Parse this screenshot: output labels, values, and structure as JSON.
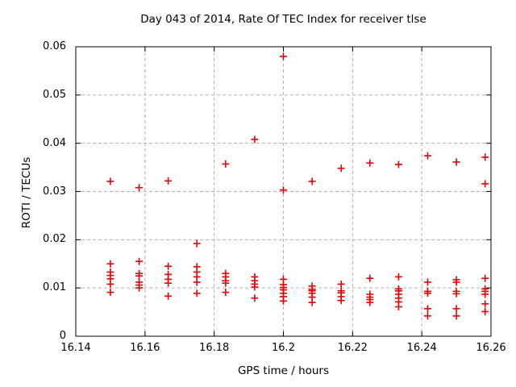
{
  "chart_data": {
    "type": "scatter",
    "title": "Day 043 of 2014, Rate Of TEC Index for receiver tlse",
    "xlabel": "GPS time / hours",
    "ylabel": "ROTI / TECUs",
    "xlim": [
      16.14,
      16.26
    ],
    "ylim": [
      0,
      0.06
    ],
    "xtick_labels": [
      "16.14",
      "16.16",
      "16.18",
      "16.2",
      "16.22",
      "16.24",
      "16.26"
    ],
    "xticks": [
      16.14,
      16.16,
      16.18,
      16.2,
      16.22,
      16.24,
      16.26
    ],
    "ytick_labels": [
      "0",
      "0.01",
      "0.02",
      "0.03",
      "0.04",
      "0.05",
      "0.06"
    ],
    "yticks": [
      0,
      0.01,
      0.02,
      0.03,
      0.04,
      0.05,
      0.06
    ],
    "grid": true,
    "legend": "none",
    "marker": "plus",
    "marker_color": "#e60000",
    "grid_color": "#b0b0b0",
    "border_color": "#000000",
    "series": [
      {
        "name": "ROTI",
        "clusters": [
          {
            "x": 16.15,
            "y": [
              0.0321,
              0.015,
              0.0133,
              0.0126,
              0.0119,
              0.0108,
              0.0091
            ]
          },
          {
            "x": 16.1583,
            "y": [
              0.0308,
              0.0155,
              0.013,
              0.0125,
              0.0112,
              0.0106,
              0.01
            ]
          },
          {
            "x": 16.1667,
            "y": [
              0.0322,
              0.0145,
              0.0128,
              0.0118,
              0.011,
              0.0083
            ]
          },
          {
            "x": 16.175,
            "y": [
              0.0192,
              0.0144,
              0.0133,
              0.0123,
              0.0112,
              0.0089
            ]
          },
          {
            "x": 16.1833,
            "y": [
              0.0357,
              0.013,
              0.0123,
              0.0115,
              0.011,
              0.0091
            ]
          },
          {
            "x": 16.1917,
            "y": [
              0.0408,
              0.0123,
              0.0115,
              0.0108,
              0.0102,
              0.0079
            ]
          },
          {
            "x": 16.2,
            "y": [
              0.058,
              0.0303,
              0.0118,
              0.0107,
              0.0101,
              0.0096,
              0.0089,
              0.0082,
              0.0073
            ]
          },
          {
            "x": 16.2083,
            "y": [
              0.0321,
              0.0104,
              0.0097,
              0.0094,
              0.0089,
              0.0081,
              0.007
            ]
          },
          {
            "x": 16.2167,
            "y": [
              0.0348,
              0.0108,
              0.0094,
              0.009,
              0.0082,
              0.0074
            ]
          },
          {
            "x": 16.225,
            "y": [
              0.0359,
              0.012,
              0.0087,
              0.0081,
              0.0076,
              0.007
            ]
          },
          {
            "x": 16.2333,
            "y": [
              0.0356,
              0.0123,
              0.0098,
              0.0094,
              0.0087,
              0.0079,
              0.0071,
              0.0061
            ]
          },
          {
            "x": 16.2417,
            "y": [
              0.0374,
              0.0112,
              0.0093,
              0.0089,
              0.0057,
              0.0042
            ]
          },
          {
            "x": 16.25,
            "y": [
              0.0361,
              0.0117,
              0.0112,
              0.0093,
              0.0088,
              0.0057,
              0.0042
            ]
          },
          {
            "x": 16.2583,
            "y": [
              0.0371,
              0.0316,
              0.012,
              0.0098,
              0.0093,
              0.0087,
              0.0067,
              0.0051
            ]
          }
        ]
      }
    ]
  }
}
